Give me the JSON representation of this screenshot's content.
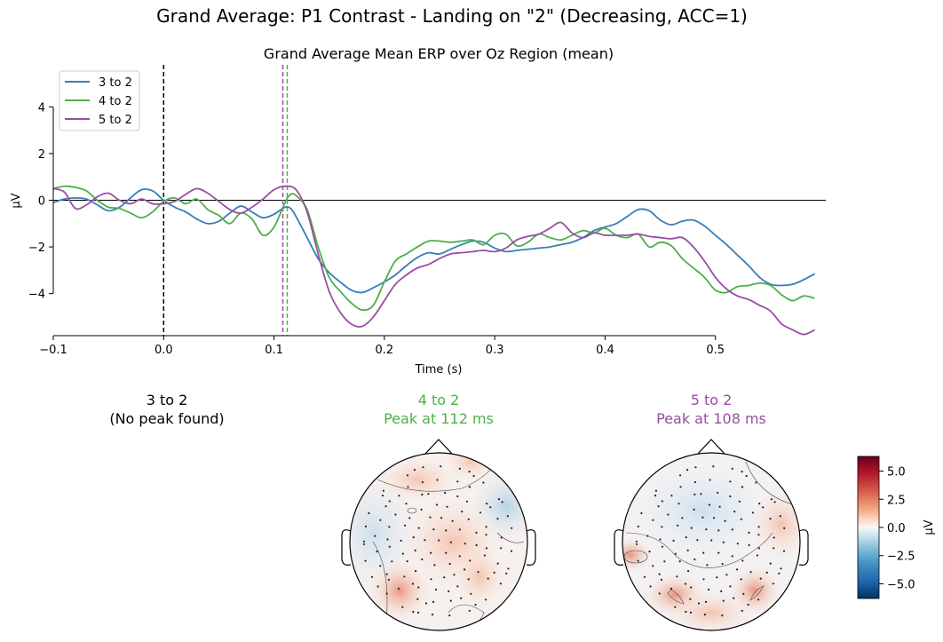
{
  "figure": {
    "suptitle": "Grand Average: P1 Contrast - Landing on \"2\" (Decreasing, ACC=1)"
  },
  "chart_data": [
    {
      "type": "line",
      "title": "Grand Average Mean ERP over Oz Region (mean)",
      "xlabel": "Time (s)",
      "ylabel": "µV",
      "xlim": [
        -0.1,
        0.6
      ],
      "ylim": [
        -5.8,
        5.8
      ],
      "xticks": [
        -0.1,
        0.0,
        0.1,
        0.2,
        0.3,
        0.4,
        0.5
      ],
      "xtick_labels": [
        "−0.1",
        "0.0",
        "0.1",
        "0.2",
        "0.3",
        "0.4",
        "0.5"
      ],
      "yticks": [
        -4,
        -2,
        0,
        2,
        4
      ],
      "ytick_labels": [
        "−4",
        "−2",
        "0",
        "2",
        "4"
      ],
      "legend_position": "top-left",
      "vlines": [
        {
          "x": 0.0,
          "color": "#000000"
        },
        {
          "x": 0.108,
          "color": "#984ea3"
        },
        {
          "x": 0.112,
          "color": "#4daf4a"
        }
      ],
      "series": [
        {
          "name": "3 to 2",
          "color": "#377eb8",
          "points": [
            [
              -0.1,
              -0.1
            ],
            [
              -0.09,
              0.05
            ],
            [
              -0.08,
              0.1
            ],
            [
              -0.07,
              0.05
            ],
            [
              -0.06,
              -0.2
            ],
            [
              -0.05,
              -0.45
            ],
            [
              -0.04,
              -0.3
            ],
            [
              -0.03,
              0.1
            ],
            [
              -0.02,
              0.45
            ],
            [
              -0.01,
              0.4
            ],
            [
              0.0,
              0.0
            ],
            [
              0.01,
              -0.3
            ],
            [
              0.02,
              -0.5
            ],
            [
              0.03,
              -0.8
            ],
            [
              0.04,
              -1.0
            ],
            [
              0.05,
              -0.9
            ],
            [
              0.06,
              -0.55
            ],
            [
              0.07,
              -0.25
            ],
            [
              0.08,
              -0.5
            ],
            [
              0.09,
              -0.75
            ],
            [
              0.1,
              -0.6
            ],
            [
              0.11,
              -0.3
            ],
            [
              0.115,
              -0.35
            ],
            [
              0.12,
              -0.7
            ],
            [
              0.13,
              -1.6
            ],
            [
              0.14,
              -2.5
            ],
            [
              0.15,
              -3.1
            ],
            [
              0.16,
              -3.5
            ],
            [
              0.17,
              -3.85
            ],
            [
              0.18,
              -3.95
            ],
            [
              0.19,
              -3.75
            ],
            [
              0.2,
              -3.5
            ],
            [
              0.21,
              -3.2
            ],
            [
              0.22,
              -2.8
            ],
            [
              0.23,
              -2.45
            ],
            [
              0.24,
              -2.25
            ],
            [
              0.25,
              -2.3
            ],
            [
              0.26,
              -2.1
            ],
            [
              0.27,
              -1.9
            ],
            [
              0.28,
              -1.75
            ],
            [
              0.29,
              -1.8
            ],
            [
              0.3,
              -2.05
            ],
            [
              0.31,
              -2.2
            ],
            [
              0.32,
              -2.15
            ],
            [
              0.33,
              -2.1
            ],
            [
              0.34,
              -2.05
            ],
            [
              0.35,
              -2.0
            ],
            [
              0.36,
              -1.9
            ],
            [
              0.37,
              -1.8
            ],
            [
              0.38,
              -1.6
            ],
            [
              0.39,
              -1.3
            ],
            [
              0.4,
              -1.15
            ],
            [
              0.41,
              -1.0
            ],
            [
              0.42,
              -0.7
            ],
            [
              0.43,
              -0.4
            ],
            [
              0.44,
              -0.45
            ],
            [
              0.45,
              -0.85
            ],
            [
              0.46,
              -1.05
            ],
            [
              0.47,
              -0.9
            ],
            [
              0.48,
              -0.85
            ],
            [
              0.49,
              -1.1
            ],
            [
              0.5,
              -1.5
            ],
            [
              0.51,
              -1.9
            ],
            [
              0.52,
              -2.35
            ],
            [
              0.53,
              -2.8
            ],
            [
              0.54,
              -3.3
            ],
            [
              0.55,
              -3.6
            ],
            [
              0.56,
              -3.65
            ],
            [
              0.57,
              -3.6
            ],
            [
              0.58,
              -3.4
            ],
            [
              0.59,
              -3.15
            ]
          ]
        },
        {
          "name": "4 to 2",
          "color": "#4daf4a",
          "points": [
            [
              -0.1,
              0.5
            ],
            [
              -0.09,
              0.6
            ],
            [
              -0.08,
              0.55
            ],
            [
              -0.07,
              0.4
            ],
            [
              -0.06,
              0.0
            ],
            [
              -0.05,
              -0.3
            ],
            [
              -0.04,
              -0.35
            ],
            [
              -0.03,
              -0.55
            ],
            [
              -0.02,
              -0.75
            ],
            [
              -0.01,
              -0.5
            ],
            [
              0.0,
              -0.05
            ],
            [
              0.01,
              0.1
            ],
            [
              0.02,
              -0.15
            ],
            [
              0.03,
              0.05
            ],
            [
              0.04,
              -0.4
            ],
            [
              0.05,
              -0.65
            ],
            [
              0.06,
              -1.0
            ],
            [
              0.07,
              -0.55
            ],
            [
              0.08,
              -0.8
            ],
            [
              0.09,
              -1.5
            ],
            [
              0.1,
              -1.15
            ],
            [
              0.11,
              -0.1
            ],
            [
              0.115,
              0.25
            ],
            [
              0.12,
              0.2
            ],
            [
              0.13,
              -0.4
            ],
            [
              0.14,
              -2.0
            ],
            [
              0.15,
              -3.3
            ],
            [
              0.16,
              -3.9
            ],
            [
              0.17,
              -4.4
            ],
            [
              0.18,
              -4.7
            ],
            [
              0.19,
              -4.5
            ],
            [
              0.2,
              -3.5
            ],
            [
              0.21,
              -2.6
            ],
            [
              0.22,
              -2.3
            ],
            [
              0.23,
              -2.0
            ],
            [
              0.24,
              -1.75
            ],
            [
              0.25,
              -1.75
            ],
            [
              0.26,
              -1.8
            ],
            [
              0.27,
              -1.75
            ],
            [
              0.28,
              -1.7
            ],
            [
              0.29,
              -1.9
            ],
            [
              0.3,
              -1.5
            ],
            [
              0.31,
              -1.45
            ],
            [
              0.32,
              -1.95
            ],
            [
              0.33,
              -1.8
            ],
            [
              0.34,
              -1.45
            ],
            [
              0.35,
              -1.6
            ],
            [
              0.36,
              -1.7
            ],
            [
              0.37,
              -1.5
            ],
            [
              0.38,
              -1.3
            ],
            [
              0.39,
              -1.4
            ],
            [
              0.4,
              -1.2
            ],
            [
              0.41,
              -1.5
            ],
            [
              0.42,
              -1.6
            ],
            [
              0.43,
              -1.45
            ],
            [
              0.44,
              -2.0
            ],
            [
              0.45,
              -1.8
            ],
            [
              0.46,
              -1.95
            ],
            [
              0.47,
              -2.5
            ],
            [
              0.48,
              -2.9
            ],
            [
              0.49,
              -3.3
            ],
            [
              0.5,
              -3.85
            ],
            [
              0.51,
              -3.95
            ],
            [
              0.52,
              -3.7
            ],
            [
              0.53,
              -3.65
            ],
            [
              0.54,
              -3.55
            ],
            [
              0.55,
              -3.65
            ],
            [
              0.56,
              -4.05
            ],
            [
              0.57,
              -4.3
            ],
            [
              0.58,
              -4.1
            ],
            [
              0.59,
              -4.2
            ]
          ]
        },
        {
          "name": "5 to 2",
          "color": "#984ea3",
          "points": [
            [
              -0.1,
              0.5
            ],
            [
              -0.09,
              0.35
            ],
            [
              -0.08,
              -0.35
            ],
            [
              -0.07,
              -0.2
            ],
            [
              -0.06,
              0.15
            ],
            [
              -0.05,
              0.3
            ],
            [
              -0.04,
              0.0
            ],
            [
              -0.03,
              -0.15
            ],
            [
              -0.02,
              0.05
            ],
            [
              -0.01,
              -0.15
            ],
            [
              0.0,
              -0.15
            ],
            [
              0.01,
              -0.05
            ],
            [
              0.02,
              0.25
            ],
            [
              0.03,
              0.5
            ],
            [
              0.04,
              0.3
            ],
            [
              0.05,
              -0.05
            ],
            [
              0.06,
              -0.4
            ],
            [
              0.07,
              -0.55
            ],
            [
              0.08,
              -0.3
            ],
            [
              0.09,
              0.05
            ],
            [
              0.1,
              0.45
            ],
            [
              0.11,
              0.6
            ],
            [
              0.12,
              0.45
            ],
            [
              0.13,
              -0.5
            ],
            [
              0.14,
              -2.3
            ],
            [
              0.15,
              -3.9
            ],
            [
              0.16,
              -4.8
            ],
            [
              0.17,
              -5.3
            ],
            [
              0.18,
              -5.4
            ],
            [
              0.19,
              -5.0
            ],
            [
              0.2,
              -4.3
            ],
            [
              0.21,
              -3.6
            ],
            [
              0.22,
              -3.2
            ],
            [
              0.23,
              -2.9
            ],
            [
              0.24,
              -2.75
            ],
            [
              0.25,
              -2.5
            ],
            [
              0.26,
              -2.3
            ],
            [
              0.27,
              -2.25
            ],
            [
              0.28,
              -2.2
            ],
            [
              0.29,
              -2.15
            ],
            [
              0.3,
              -2.2
            ],
            [
              0.31,
              -2.05
            ],
            [
              0.32,
              -1.7
            ],
            [
              0.33,
              -1.55
            ],
            [
              0.34,
              -1.45
            ],
            [
              0.35,
              -1.2
            ],
            [
              0.36,
              -0.95
            ],
            [
              0.37,
              -1.4
            ],
            [
              0.38,
              -1.6
            ],
            [
              0.39,
              -1.4
            ],
            [
              0.4,
              -1.5
            ],
            [
              0.41,
              -1.5
            ],
            [
              0.42,
              -1.5
            ],
            [
              0.43,
              -1.45
            ],
            [
              0.44,
              -1.55
            ],
            [
              0.45,
              -1.6
            ],
            [
              0.46,
              -1.65
            ],
            [
              0.47,
              -1.6
            ],
            [
              0.48,
              -2.0
            ],
            [
              0.49,
              -2.6
            ],
            [
              0.5,
              -3.3
            ],
            [
              0.51,
              -3.8
            ],
            [
              0.52,
              -4.1
            ],
            [
              0.53,
              -4.25
            ],
            [
              0.54,
              -4.5
            ],
            [
              0.55,
              -4.75
            ],
            [
              0.56,
              -5.3
            ],
            [
              0.57,
              -5.55
            ],
            [
              0.58,
              -5.75
            ],
            [
              0.59,
              -5.55
            ]
          ]
        }
      ]
    },
    {
      "type": "heatmap",
      "colorbar_label": "µV",
      "colorbar_range": [
        -6.3,
        6.3
      ],
      "colorbar_ticks": [
        5.0,
        2.5,
        0.0,
        -2.5,
        -5.0
      ],
      "colorbar_tick_labels": [
        "5.0",
        "2.5",
        "0.0",
        "−2.5",
        "−5.0"
      ],
      "topomaps": [
        {
          "line1": "3 to 2",
          "line2": "(No peak found)",
          "color": "#000000",
          "present": false
        },
        {
          "line1": "4 to 2",
          "line2": "Peak at 112 ms",
          "color": "#4daf4a",
          "present": true
        },
        {
          "line1": "5 to 2",
          "line2": "Peak at 108 ms",
          "color": "#984ea3",
          "present": true
        }
      ]
    }
  ]
}
